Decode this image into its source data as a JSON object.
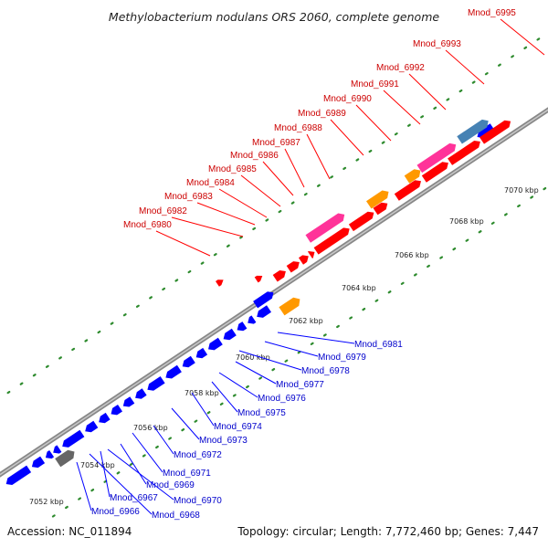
{
  "title": "Methylobacterium nodulans ORS 2060, complete genome",
  "footer": {
    "accession": "Accession: NC_011894",
    "summary": "Topology: circular; Length: 7,772,460 bp; Genes: 7,447"
  },
  "colors": {
    "forward_gene": "#ff0000",
    "reverse_gene": "#0000ff",
    "orange_feature": "#ff9900",
    "pink_feature": "#ff3399",
    "blue_feature": "#4682b4",
    "gray_feature": "#666666",
    "tick_dot": "#2e8b2e",
    "backbone": "#888888"
  },
  "scale_labels": [
    "7052 kbp",
    "7054 kbp",
    "7056 kbp",
    "7058 kbp",
    "7060 kbp",
    "7062 kbp",
    "7064 kbp",
    "7066 kbp",
    "7068 kbp",
    "7070 kbp"
  ],
  "forward_labels": [
    "Mnod_6980",
    "Mnod_6982",
    "Mnod_6983",
    "Mnod_6984",
    "Mnod_6985",
    "Mnod_6986",
    "Mnod_6987",
    "Mnod_6988",
    "Mnod_6989",
    "Mnod_6990",
    "Mnod_6991",
    "Mnod_6992",
    "Mnod_6993",
    "Mnod_6995"
  ],
  "reverse_labels": [
    "Mnod_6981",
    "Mnod_6979",
    "Mnod_6978",
    "Mnod_6977",
    "Mnod_6976",
    "Mnod_6975",
    "Mnod_6974",
    "Mnod_6973",
    "Mnod_6972",
    "Mnod_6971",
    "Mnod_6969",
    "Mnod_6970",
    "Mnod_6967",
    "Mnod_6968",
    "Mnod_6966"
  ]
}
